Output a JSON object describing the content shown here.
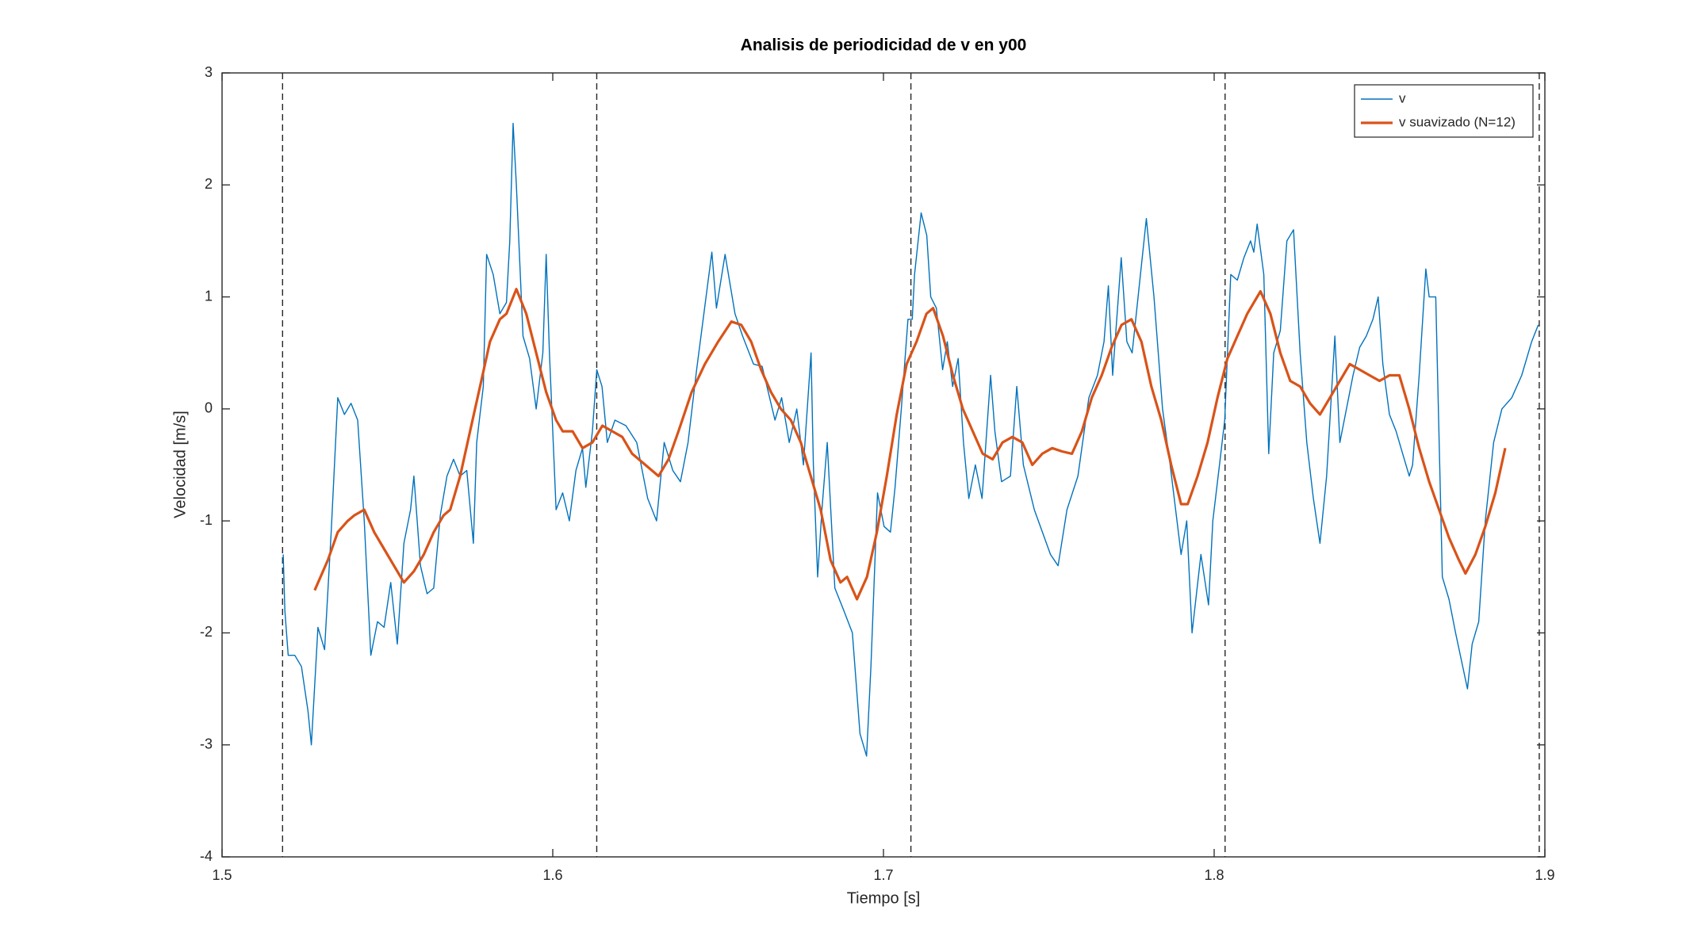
{
  "chart_data": {
    "type": "line",
    "title": "Analisis de periodicidad de v en y00",
    "xlabel": "Tiempo [s]",
    "ylabel": "Velocidad [m/s]",
    "xlim": [
      1.5,
      1.9
    ],
    "xticks": [
      1.5,
      1.6,
      1.7,
      1.8,
      1.9
    ],
    "ylim": [
      -4,
      3
    ],
    "yticks": [
      -4,
      -3,
      -2,
      -1,
      0,
      1,
      2,
      3
    ],
    "grid": false,
    "legend": "upper right",
    "vlines": [
      1.5183,
      1.6133,
      1.7083,
      1.8033,
      1.8983
    ],
    "series": [
      {
        "name": "v",
        "color": "#0072bd",
        "x": [
          1.5185,
          1.519,
          1.52,
          1.522,
          1.524,
          1.526,
          1.527,
          1.529,
          1.531,
          1.533,
          1.535,
          1.537,
          1.539,
          1.541,
          1.543,
          1.545,
          1.547,
          1.549,
          1.551,
          1.553,
          1.555,
          1.557,
          1.558,
          1.56,
          1.562,
          1.564,
          1.566,
          1.568,
          1.57,
          1.572,
          1.574,
          1.576,
          1.577,
          1.579,
          1.58,
          1.582,
          1.584,
          1.586,
          1.587,
          1.588,
          1.589,
          1.591,
          1.593,
          1.595,
          1.597,
          1.598,
          1.599,
          1.601,
          1.603,
          1.605,
          1.607,
          1.609,
          1.61,
          1.612,
          1.6133,
          1.6149,
          1.6165,
          1.6188,
          1.6221,
          1.6254,
          1.6287,
          1.6314,
          1.6337,
          1.6363,
          1.6386,
          1.6409,
          1.6435,
          1.6481,
          1.6495,
          1.6521,
          1.6551,
          1.6574,
          1.6607,
          1.6633,
          1.6672,
          1.6692,
          1.6715,
          1.6738,
          1.6758,
          1.6781,
          1.6788,
          1.6801,
          1.6814,
          1.683,
          1.6853,
          1.688,
          1.6906,
          1.6929,
          1.6949,
          1.6962,
          1.6982,
          1.7002,
          1.7021,
          1.7035,
          1.7054,
          1.7074,
          1.7087,
          1.7094,
          1.7114,
          1.7131,
          1.7143,
          1.716,
          1.7179,
          1.7193,
          1.7209,
          1.7226,
          1.7242,
          1.7258,
          1.7278,
          1.7298,
          1.7324,
          1.7337,
          1.7357,
          1.7384,
          1.7403,
          1.7423,
          1.7456,
          1.7505,
          1.7528,
          1.7555,
          1.7588,
          1.7621,
          1.7647,
          1.7667,
          1.768,
          1.7693,
          1.7719,
          1.7736,
          1.7752,
          1.7795,
          1.7818,
          1.7844,
          1.7867,
          1.79,
          1.7917,
          1.7933,
          1.796,
          1.7983,
          1.7996,
          1.8016,
          1.8032,
          1.805,
          1.807,
          1.809,
          1.811,
          1.812,
          1.813,
          1.815,
          1.8165,
          1.818,
          1.82,
          1.822,
          1.824,
          1.826,
          1.828,
          1.83,
          1.832,
          1.834,
          1.8365,
          1.838,
          1.84,
          1.842,
          1.844,
          1.846,
          1.848,
          1.8496,
          1.851,
          1.853,
          1.855,
          1.857,
          1.859,
          1.86,
          1.862,
          1.864,
          1.865,
          1.867,
          1.869,
          1.871,
          1.873,
          1.8766,
          1.878,
          1.88,
          1.882,
          1.8845,
          1.887,
          1.89,
          1.893,
          1.896,
          1.898
        ],
        "values": [
          -1.3,
          -1.8,
          -2.2,
          -2.2,
          -2.3,
          -2.7,
          -3.0,
          -1.95,
          -2.15,
          -1.1,
          0.1,
          -0.05,
          0.05,
          -0.1,
          -1.0,
          -2.2,
          -1.9,
          -1.95,
          -1.55,
          -2.1,
          -1.2,
          -0.9,
          -0.6,
          -1.4,
          -1.65,
          -1.6,
          -0.95,
          -0.6,
          -0.45,
          -0.6,
          -0.55,
          -1.2,
          -0.3,
          0.2,
          1.38,
          1.2,
          0.85,
          0.95,
          1.5,
          2.55,
          2.0,
          0.65,
          0.45,
          0.0,
          0.5,
          1.38,
          0.5,
          -0.9,
          -0.75,
          -1.0,
          -0.55,
          -0.35,
          -0.7,
          -0.2,
          0.35,
          0.2,
          -0.3,
          -0.1,
          -0.15,
          -0.3,
          -0.8,
          -1.0,
          -0.3,
          -0.55,
          -0.65,
          -0.3,
          0.35,
          1.4,
          0.9,
          1.38,
          0.85,
          0.65,
          0.4,
          0.38,
          -0.1,
          0.1,
          -0.3,
          0.0,
          -0.5,
          0.5,
          -0.5,
          -1.5,
          -0.9,
          -0.3,
          -1.6,
          -1.8,
          -2.0,
          -2.9,
          -3.1,
          -2.3,
          -0.75,
          -1.05,
          -1.1,
          -0.7,
          0.0,
          0.8,
          0.8,
          1.2,
          1.75,
          1.55,
          1.0,
          0.9,
          0.35,
          0.6,
          0.2,
          0.45,
          -0.3,
          -0.8,
          -0.5,
          -0.8,
          0.3,
          -0.2,
          -0.65,
          -0.6,
          0.2,
          -0.5,
          -0.9,
          -1.3,
          -1.4,
          -0.9,
          -0.6,
          0.1,
          0.3,
          0.6,
          1.1,
          0.3,
          1.35,
          0.6,
          0.5,
          1.7,
          1.0,
          0.0,
          -0.5,
          -1.3,
          -1.0,
          -2.0,
          -1.3,
          -1.75,
          -1.0,
          -0.5,
          -0.1,
          1.2,
          1.15,
          1.35,
          1.5,
          1.4,
          1.65,
          1.2,
          -0.4,
          0.5,
          0.7,
          1.5,
          1.6,
          0.5,
          -0.3,
          -0.8,
          -1.2,
          -0.6,
          0.65,
          -0.3,
          0.0,
          0.3,
          0.55,
          0.65,
          0.8,
          1.0,
          0.4,
          -0.05,
          -0.2,
          -0.4,
          -0.6,
          -0.5,
          0.3,
          1.25,
          1.0,
          1.0,
          -1.5,
          -1.7,
          -2.0,
          -2.5,
          -2.1,
          -1.9,
          -1.0,
          -0.3,
          0.0,
          0.1,
          0.3,
          0.6,
          0.75
        ]
      },
      {
        "name": "v suavizado (N=12)",
        "color": "#d95319",
        "x": [
          1.528,
          1.532,
          1.535,
          1.538,
          1.54,
          1.543,
          1.546,
          1.549,
          1.552,
          1.555,
          1.558,
          1.561,
          1.564,
          1.567,
          1.569,
          1.572,
          1.575,
          1.578,
          1.581,
          1.584,
          1.586,
          1.589,
          1.592,
          1.595,
          1.598,
          1.601,
          1.603,
          1.606,
          1.609,
          1.612,
          1.615,
          1.618,
          1.621,
          1.624,
          1.628,
          1.632,
          1.635,
          1.638,
          1.642,
          1.646,
          1.65,
          1.654,
          1.657,
          1.66,
          1.663,
          1.666,
          1.669,
          1.672,
          1.675,
          1.678,
          1.681,
          1.684,
          1.687,
          1.689,
          1.692,
          1.695,
          1.698,
          1.701,
          1.704,
          1.707,
          1.71,
          1.713,
          1.715,
          1.718,
          1.721,
          1.724,
          1.727,
          1.73,
          1.733,
          1.736,
          1.739,
          1.742,
          1.745,
          1.748,
          1.751,
          1.754,
          1.757,
          1.76,
          1.763,
          1.766,
          1.769,
          1.772,
          1.775,
          1.778,
          1.781,
          1.784,
          1.787,
          1.79,
          1.792,
          1.795,
          1.798,
          1.801,
          1.804,
          1.807,
          1.81,
          1.814,
          1.817,
          1.82,
          1.823,
          1.826,
          1.829,
          1.832,
          1.835,
          1.838,
          1.841,
          1.844,
          1.847,
          1.85,
          1.853,
          1.856,
          1.859,
          1.862,
          1.865,
          1.868,
          1.871,
          1.874,
          1.876,
          1.879,
          1.882,
          1.885,
          1.888
        ],
        "values": [
          -1.62,
          -1.35,
          -1.1,
          -1.0,
          -0.95,
          -0.9,
          -1.1,
          -1.25,
          -1.4,
          -1.55,
          -1.45,
          -1.3,
          -1.1,
          -0.95,
          -0.9,
          -0.6,
          -0.2,
          0.2,
          0.6,
          0.8,
          0.85,
          1.07,
          0.85,
          0.5,
          0.15,
          -0.1,
          -0.2,
          -0.2,
          -0.35,
          -0.3,
          -0.15,
          -0.2,
          -0.25,
          -0.4,
          -0.5,
          -0.6,
          -0.45,
          -0.2,
          0.15,
          0.4,
          0.6,
          0.78,
          0.75,
          0.6,
          0.35,
          0.15,
          0.0,
          -0.1,
          -0.3,
          -0.6,
          -0.9,
          -1.35,
          -1.55,
          -1.5,
          -1.7,
          -1.5,
          -1.1,
          -0.6,
          -0.05,
          0.4,
          0.6,
          0.85,
          0.9,
          0.65,
          0.3,
          0.0,
          -0.2,
          -0.4,
          -0.45,
          -0.3,
          -0.25,
          -0.3,
          -0.5,
          -0.4,
          -0.35,
          -0.38,
          -0.4,
          -0.2,
          0.1,
          0.3,
          0.55,
          0.75,
          0.8,
          0.6,
          0.2,
          -0.1,
          -0.5,
          -0.85,
          -0.85,
          -0.6,
          -0.3,
          0.1,
          0.45,
          0.65,
          0.85,
          1.05,
          0.85,
          0.5,
          0.25,
          0.2,
          0.05,
          -0.05,
          0.1,
          0.25,
          0.4,
          0.35,
          0.3,
          0.25,
          0.3,
          0.3,
          0.0,
          -0.35,
          -0.65,
          -0.9,
          -1.15,
          -1.35,
          -1.47,
          -1.3,
          -1.05,
          -0.75,
          -0.35
        ]
      }
    ]
  }
}
